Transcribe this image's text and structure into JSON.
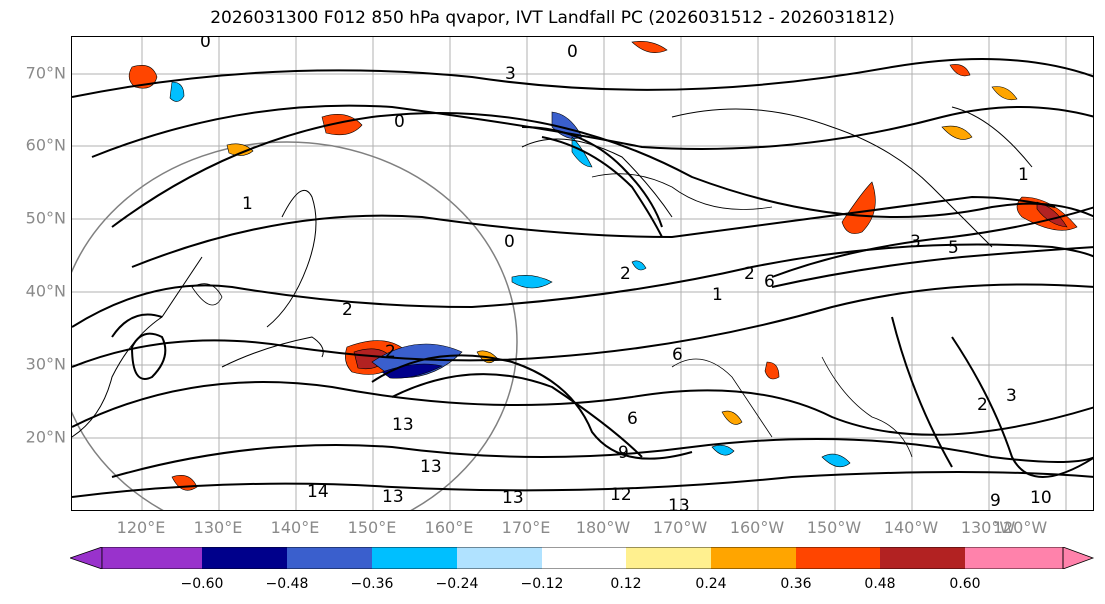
{
  "title": "2026031300 F012 850 hPa qvapor, IVT Landfall PC (2026031512 - 2026031812)",
  "lat_labels": [
    "70°N",
    "60°N",
    "50°N",
    "40°N",
    "30°N",
    "20°N"
  ],
  "lon_labels": [
    "120°E",
    "130°E",
    "140°E",
    "150°E",
    "160°E",
    "170°E",
    "180°W",
    "170°W",
    "160°W",
    "150°W",
    "140°W",
    "130°W",
    "120°W"
  ],
  "colorbar": {
    "ticks": [
      "−0.60",
      "−0.48",
      "−0.36",
      "−0.24",
      "−0.12",
      "0.12",
      "0.24",
      "0.36",
      "0.48",
      "0.60"
    ],
    "colors": [
      "#9932cc",
      "#00008b",
      "#3a5fcd",
      "#00bfff",
      "#b0e2ff",
      "#ffffff",
      "#fff08f",
      "#ffa500",
      "#ff4500",
      "#b22222",
      "#ff82ab"
    ]
  },
  "contour_labels": [
    "0",
    "0",
    "0",
    "0",
    "3",
    "1",
    "1",
    "2",
    "2",
    "3",
    "5",
    "6",
    "1",
    "2",
    "2",
    "6",
    "9",
    "6",
    "13",
    "13",
    "14",
    "13",
    "13",
    "12",
    "13",
    "9",
    "10",
    "3",
    "2"
  ]
}
